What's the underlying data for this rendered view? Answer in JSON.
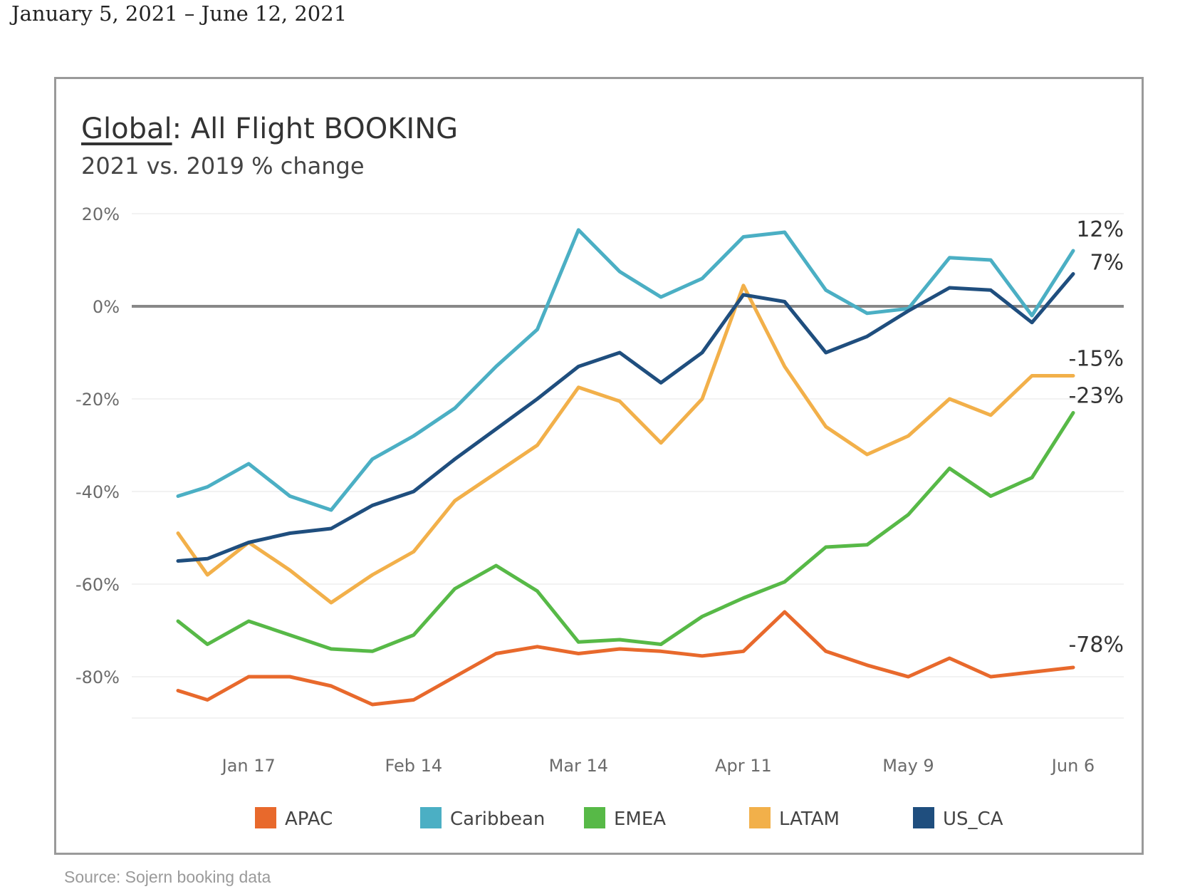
{
  "header": {
    "date_range": "January 5, 2021 – June 12, 2021"
  },
  "footer": {
    "source": "Source: Sojern booking data"
  },
  "chart_data": {
    "type": "line",
    "title_prefix": "Global",
    "title_suffix": ": All Flight BOOKING",
    "subtitle": "2021 vs. 2019 % change",
    "xlabel": "",
    "ylabel": "",
    "ylim": [
      -90,
      20
    ],
    "yticks": [
      20,
      0,
      -20,
      -40,
      -60,
      -80
    ],
    "ytick_labels": [
      "20%",
      "0%",
      "-20%",
      "-40%",
      "-60%",
      "-80%"
    ],
    "x": [
      "2021-01-05",
      "2021-01-10",
      "2021-01-17",
      "2021-01-24",
      "2021-01-31",
      "2021-02-07",
      "2021-02-14",
      "2021-02-21",
      "2021-02-28",
      "2021-03-07",
      "2021-03-14",
      "2021-03-21",
      "2021-03-28",
      "2021-04-04",
      "2021-04-11",
      "2021-04-18",
      "2021-04-25",
      "2021-05-02",
      "2021-05-09",
      "2021-05-16",
      "2021-05-23",
      "2021-05-30",
      "2021-06-06"
    ],
    "xticks": [
      "2021-01-17",
      "2021-02-14",
      "2021-03-14",
      "2021-04-11",
      "2021-05-09",
      "2021-06-06"
    ],
    "xtick_labels": [
      "Jan 17",
      "Feb 14",
      "Mar 14",
      "Apr 11",
      "May 9",
      "Jun 6"
    ],
    "reference_line": 0,
    "grid": true,
    "legend_position": "bottom",
    "series": [
      {
        "name": "APAC",
        "color": "#e8692c",
        "values": [
          -83,
          -85,
          -80,
          -80,
          -82,
          -86,
          -85,
          -80,
          -75,
          -73.5,
          -75,
          -74,
          -74.5,
          -75.5,
          -74.5,
          -66,
          -74.5,
          -77.5,
          -80,
          -76,
          -80,
          -79,
          -78
        ],
        "end_label": "-78%"
      },
      {
        "name": "Caribbean",
        "color": "#4bafc4",
        "values": [
          -41,
          -39,
          -34,
          -41,
          -44,
          -33,
          -28,
          -22,
          -13,
          -5,
          16.5,
          7.5,
          2,
          6,
          15,
          16,
          3.5,
          -1.5,
          -0.5,
          10.5,
          10,
          -2,
          12
        ],
        "end_label": "12%"
      },
      {
        "name": "EMEA",
        "color": "#57b947",
        "values": [
          -68,
          -73,
          -68,
          -71,
          -74,
          -74.5,
          -71,
          -61,
          -56,
          -61.5,
          -72.5,
          -72,
          -73,
          -67,
          -63,
          -59.5,
          -52,
          -51.5,
          -45,
          -35,
          -41,
          -37,
          -23
        ],
        "end_label": "-23%"
      },
      {
        "name": "LATAM",
        "color": "#f2b04a",
        "values": [
          -49,
          -58,
          -51,
          -57,
          -64,
          -58,
          -53,
          -42,
          -36,
          -30,
          -17.5,
          -20.5,
          -29.5,
          -20,
          4.5,
          -13,
          -26,
          -32,
          -28,
          -20,
          -23.5,
          -15,
          -15
        ],
        "end_label": "-15%"
      },
      {
        "name": "US_CA",
        "color": "#1f4e7e",
        "values": [
          -55,
          -54.5,
          -51,
          -49,
          -48,
          -43,
          -40,
          -33,
          -26.5,
          -20,
          -13,
          -10,
          -16.5,
          -10,
          2.5,
          1,
          -10,
          -6.5,
          -1,
          4,
          3.5,
          -3.5,
          7
        ],
        "end_label": "7%"
      }
    ]
  }
}
